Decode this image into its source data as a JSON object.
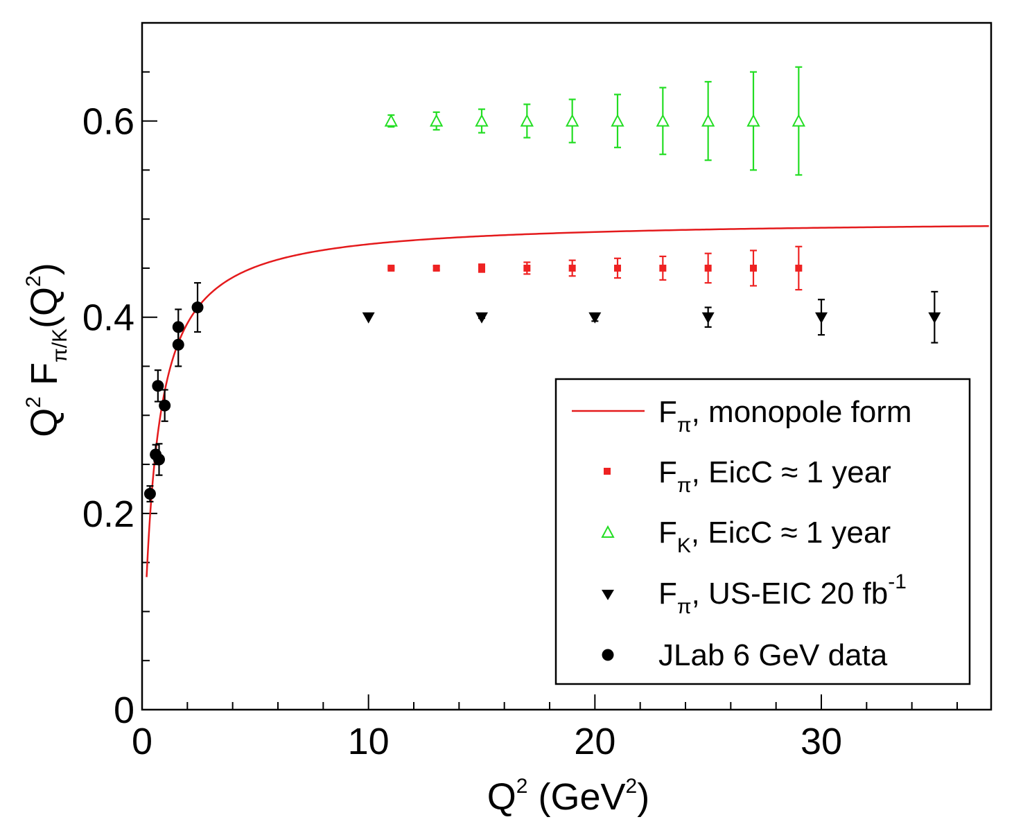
{
  "chart_data": {
    "type": "scatter",
    "title": "",
    "xlabel": {
      "main": "Q",
      "sup": "2",
      "mid": " (GeV",
      "sup2": "2",
      "end": ")"
    },
    "ylabel": {
      "q": "Q",
      "q_sup": "2",
      "f": "F",
      "f_sub": "π/K",
      "open": "(Q",
      "sup": "2",
      "close": ")"
    },
    "xlim": [
      0,
      37.5
    ],
    "ylim": [
      0,
      0.7
    ],
    "x_ticks": [
      0,
      10,
      20,
      30
    ],
    "x_tick_labels": [
      "0",
      "10",
      "20",
      "30"
    ],
    "y_ticks": [
      0,
      0.2,
      0.4,
      0.6
    ],
    "y_tick_labels": [
      "0",
      "0.2",
      "0.4",
      "0.6"
    ],
    "x_minor_step": 2,
    "y_minor_step": 0.05,
    "colors": {
      "curve": "#e41a1c",
      "eicc_pi": "#ee2222",
      "eicc_k": "#22dd22",
      "us_eic": "#000000",
      "jlab": "#000000"
    },
    "curve": {
      "name": "monopole",
      "formula": "Q2/(Q2+0.54)*0.5",
      "x_start": 0.2,
      "x_end": 37.4
    },
    "series": [
      {
        "name": "EicC_pi",
        "marker": "square",
        "x": [
          11,
          13,
          15,
          17,
          19,
          21,
          23,
          25,
          27,
          29
        ],
        "y": [
          0.45,
          0.45,
          0.45,
          0.45,
          0.45,
          0.45,
          0.45,
          0.45,
          0.45,
          0.45
        ],
        "err": [
          0.001,
          0.002,
          0.004,
          0.006,
          0.008,
          0.01,
          0.012,
          0.015,
          0.018,
          0.022
        ]
      },
      {
        "name": "EicC_K",
        "marker": "open-triangle-up",
        "x": [
          11,
          13,
          15,
          17,
          19,
          21,
          23,
          25,
          27,
          29
        ],
        "y": [
          0.6,
          0.6,
          0.6,
          0.6,
          0.6,
          0.6,
          0.6,
          0.6,
          0.6,
          0.6
        ],
        "err": [
          0.006,
          0.009,
          0.012,
          0.017,
          0.022,
          0.027,
          0.034,
          0.04,
          0.05,
          0.055
        ]
      },
      {
        "name": "US_EIC",
        "marker": "filled-triangle-down",
        "x": [
          10,
          15,
          20,
          25,
          30,
          35
        ],
        "y": [
          0.4,
          0.4,
          0.4,
          0.4,
          0.4,
          0.4
        ],
        "err": [
          0.0,
          0.001,
          0.004,
          0.01,
          0.018,
          0.026
        ]
      },
      {
        "name": "JLab",
        "marker": "filled-circle",
        "x": [
          0.35,
          0.6,
          0.75,
          0.7,
          1.0,
          1.6,
          1.6,
          2.45
        ],
        "y": [
          0.22,
          0.26,
          0.255,
          0.33,
          0.31,
          0.372,
          0.39,
          0.41
        ],
        "err": [
          0.008,
          0.01,
          0.016,
          0.016,
          0.016,
          0.022,
          0.018,
          0.025
        ]
      }
    ],
    "legend": {
      "position": "bottom-right",
      "entries": [
        {
          "key": "curve",
          "label": "F",
          "sub": "π",
          "rest": ", monopole form"
        },
        {
          "key": "EicC_pi",
          "label": "F",
          "sub": "π",
          "rest": ", EicC  ≈ 1 year"
        },
        {
          "key": "EicC_K",
          "label": "F",
          "sub": "K",
          "rest": ", EicC  ≈ 1 year"
        },
        {
          "key": "US_EIC",
          "label": "F",
          "sub": "π",
          "rest": ", US-EIC 20 fb",
          "sup": "-1"
        },
        {
          "key": "JLab",
          "label": "JLab 6 GeV data",
          "sub": "",
          "rest": ""
        }
      ]
    }
  }
}
